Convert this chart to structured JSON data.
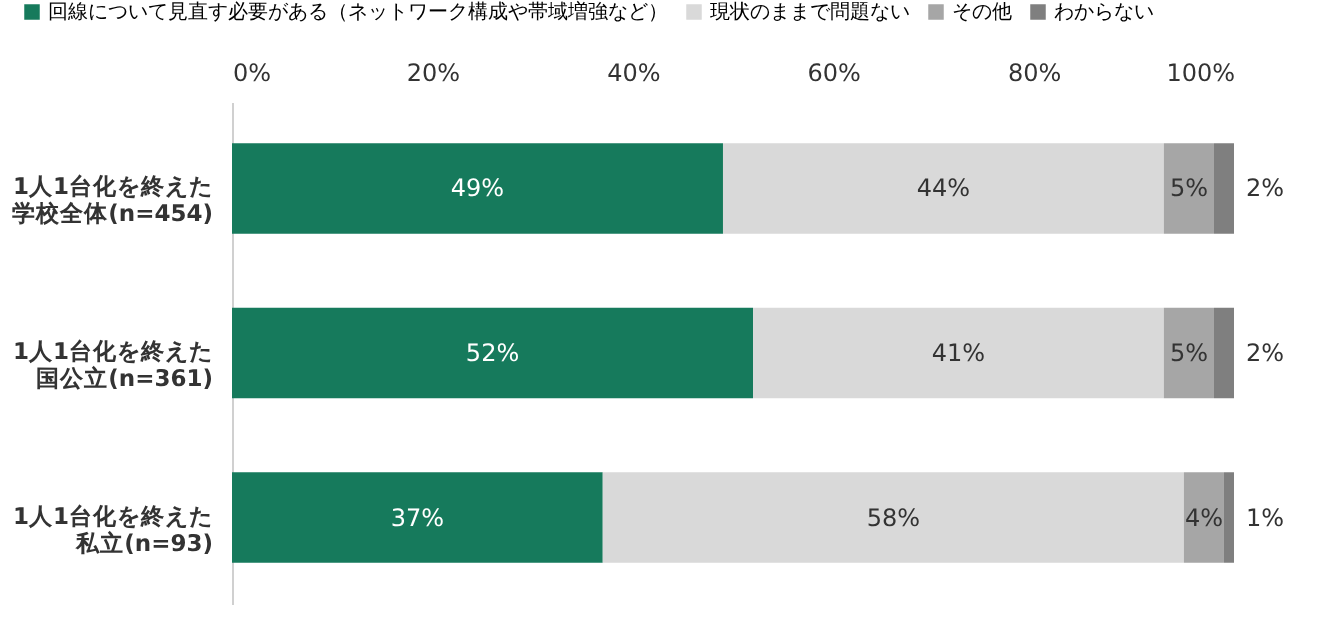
{
  "chart_data": {
    "type": "bar",
    "orientation": "horizontal",
    "stacked": true,
    "categories": [
      "1人1台化を終えた学校全体(n=454)",
      "1人1台化を終えた国公立(n=361)",
      "1人1台化を終えた私立(n=93)"
    ],
    "series": [
      {
        "name": "回線について見直す必要がある（ネットワーク構成や帯域増強など）",
        "color": "#167a5c",
        "values": [
          49,
          52,
          37
        ],
        "value_labels": [
          "49%",
          "52%",
          "37%"
        ]
      },
      {
        "name": "現状のままで問題ない",
        "color": "#d9d9d9",
        "values": [
          44,
          41,
          58
        ],
        "value_labels": [
          "44%",
          "41%",
          "58%"
        ]
      },
      {
        "name": "その他",
        "color": "#a6a6a6",
        "values": [
          5,
          5,
          4
        ],
        "value_labels": [
          "5%",
          "5%",
          "4%"
        ]
      },
      {
        "name": "わからない",
        "color": "#7f7f7f",
        "values": [
          2,
          2,
          1
        ],
        "value_labels": [
          "2%",
          "2%",
          "1%"
        ]
      }
    ],
    "xlim": [
      0,
      100
    ],
    "xticks": [
      {
        "value": 0,
        "label": "0%"
      },
      {
        "value": 20,
        "label": "20%"
      },
      {
        "value": 40,
        "label": "40%"
      },
      {
        "value": 60,
        "label": "60%"
      },
      {
        "value": 80,
        "label": "80%"
      },
      {
        "value": 100,
        "label": "100%"
      }
    ],
    "grid": false,
    "legend": "top"
  }
}
